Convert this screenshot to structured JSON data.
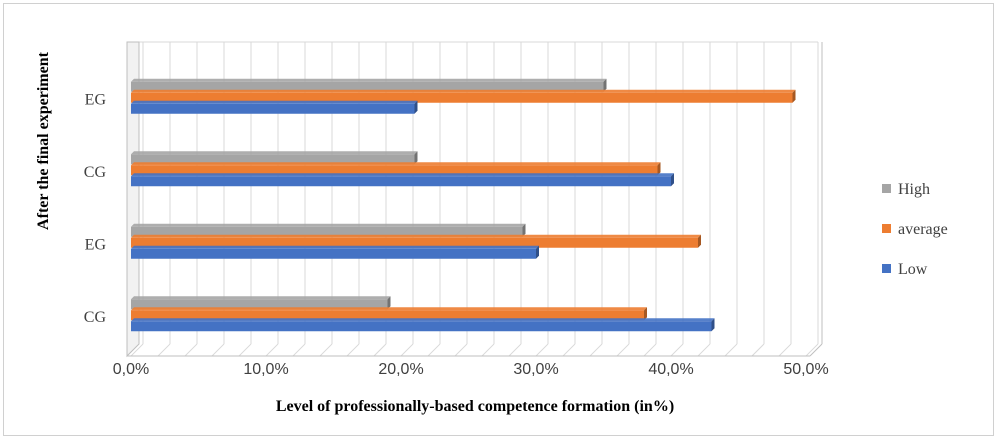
{
  "chart_data": {
    "type": "bar",
    "orientation": "horizontal",
    "title": "",
    "xlabel": "Level of professionally-based   competence  formation (in%)",
    "ylabel": "After the final experiment",
    "categories": [
      "CG",
      "EG",
      "CG",
      "EG"
    ],
    "xlim": [
      0,
      50
    ],
    "xticks": [
      "0,0%",
      "10,0%",
      "20,0%",
      "30,0%",
      "40,0%",
      "50,0%"
    ],
    "grid": true,
    "legend_position": "right",
    "series": [
      {
        "name": "Low",
        "color": "#4472c4",
        "values": [
          43,
          30,
          40,
          21
        ]
      },
      {
        "name": "average",
        "color": "#ed7d31",
        "values": [
          38,
          42,
          39,
          49
        ]
      },
      {
        "name": "High",
        "color": "#a5a5a5",
        "values": [
          19,
          29,
          21,
          35
        ]
      }
    ]
  }
}
